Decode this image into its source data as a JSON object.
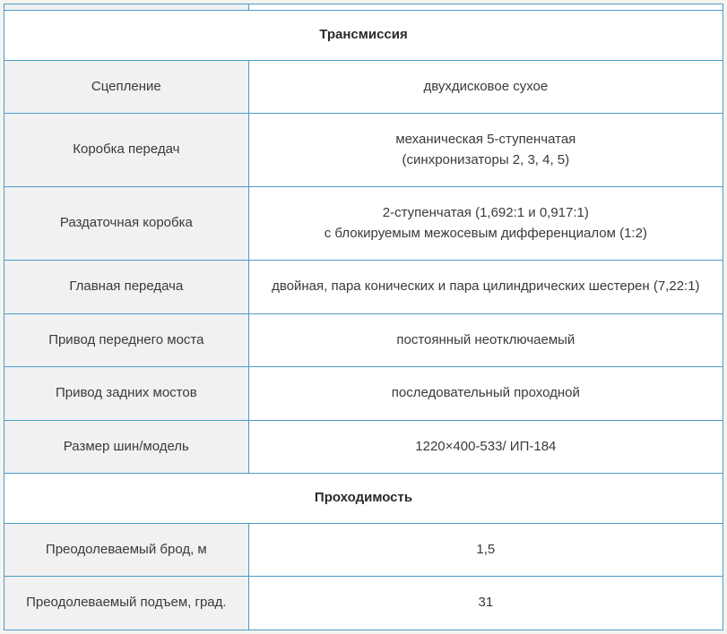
{
  "sections": [
    {
      "title": "Трансмиссия",
      "rows": [
        {
          "label": "Сцепление",
          "value": "двухдисковое сухое"
        },
        {
          "label": "Коробка передач",
          "value": "механическая 5-ступенчатая\n(синхронизаторы 2, 3, 4, 5)"
        },
        {
          "label": "Раздаточная коробка",
          "value": "2-ступенчатая (1,692:1 и 0,917:1)\nс блокируемым межосевым дифференциалом (1:2)"
        },
        {
          "label": "Главная передача",
          "value": "двойная, пара конических и пара цилиндрических шестерен (7,22:1)"
        },
        {
          "label": "Привод переднего моста",
          "value": "постоянный неотключаемый"
        },
        {
          "label": "Привод задних мостов",
          "value": "последовательный проходной"
        },
        {
          "label": "Размер шин/модель",
          "value": "1220×400-533/ ИП-184"
        }
      ]
    },
    {
      "title": "Проходимость",
      "rows": [
        {
          "label": "Преодолеваемый брод, м",
          "value": "1,5"
        },
        {
          "label": "Преодолеваемый подъем, град.",
          "value": "31"
        }
      ]
    }
  ],
  "colors": {
    "border": "#4a9bc9",
    "label_bg": "#f1f1f1",
    "value_bg": "#ffffff",
    "text": "#3a3a3a",
    "page_bg": "#f5f3ee"
  }
}
